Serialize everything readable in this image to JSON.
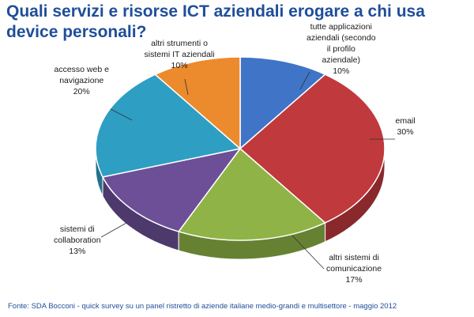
{
  "title": {
    "line1": "Quali servizi e risorse ICT aziendali erogare a chi usa",
    "line2": "device personali?"
  },
  "footer": "Fonte: SDA Bocconi  - quick survey su un panel ristretto di aziende italiane medio-grandi e multisettore - maggio 2012",
  "chart_data": {
    "type": "pie",
    "title": "Quali servizi e risorse ICT aziendali erogare a chi usa device personali?",
    "three_d": true,
    "slices": [
      {
        "label": "tutte applicazioni aziendali (secondo il profilo aziendale)",
        "label_lines": [
          "tutte applicazioni",
          "aziendali (secondo",
          "il profilo",
          "aziendale)"
        ],
        "value": 10,
        "value_label": "10%",
        "color": "#3f74c7"
      },
      {
        "label": "email",
        "label_lines": [
          "email"
        ],
        "value": 30,
        "value_label": "30%",
        "color": "#c0393c"
      },
      {
        "label": "altri sistemi di comunicazione",
        "label_lines": [
          "altri sistemi di",
          "comunicazione"
        ],
        "value": 17,
        "value_label": "17%",
        "color": "#8fb346"
      },
      {
        "label": "sistemi di collaboration",
        "label_lines": [
          "sistemi di",
          "collaboration"
        ],
        "value": 13,
        "value_label": "13%",
        "color": "#6d4f98"
      },
      {
        "label": "accesso web e navigazione",
        "label_lines": [
          "accesso web e",
          "navigazione"
        ],
        "value": 20,
        "value_label": "20%",
        "color": "#2e9ec3"
      },
      {
        "label": "altri strumenti o sistemi IT aziendali",
        "label_lines": [
          "altri strumenti o",
          "sistemi IT aziendali"
        ],
        "value": 10,
        "value_label": "10%",
        "color": "#ec8a2e"
      }
    ]
  }
}
